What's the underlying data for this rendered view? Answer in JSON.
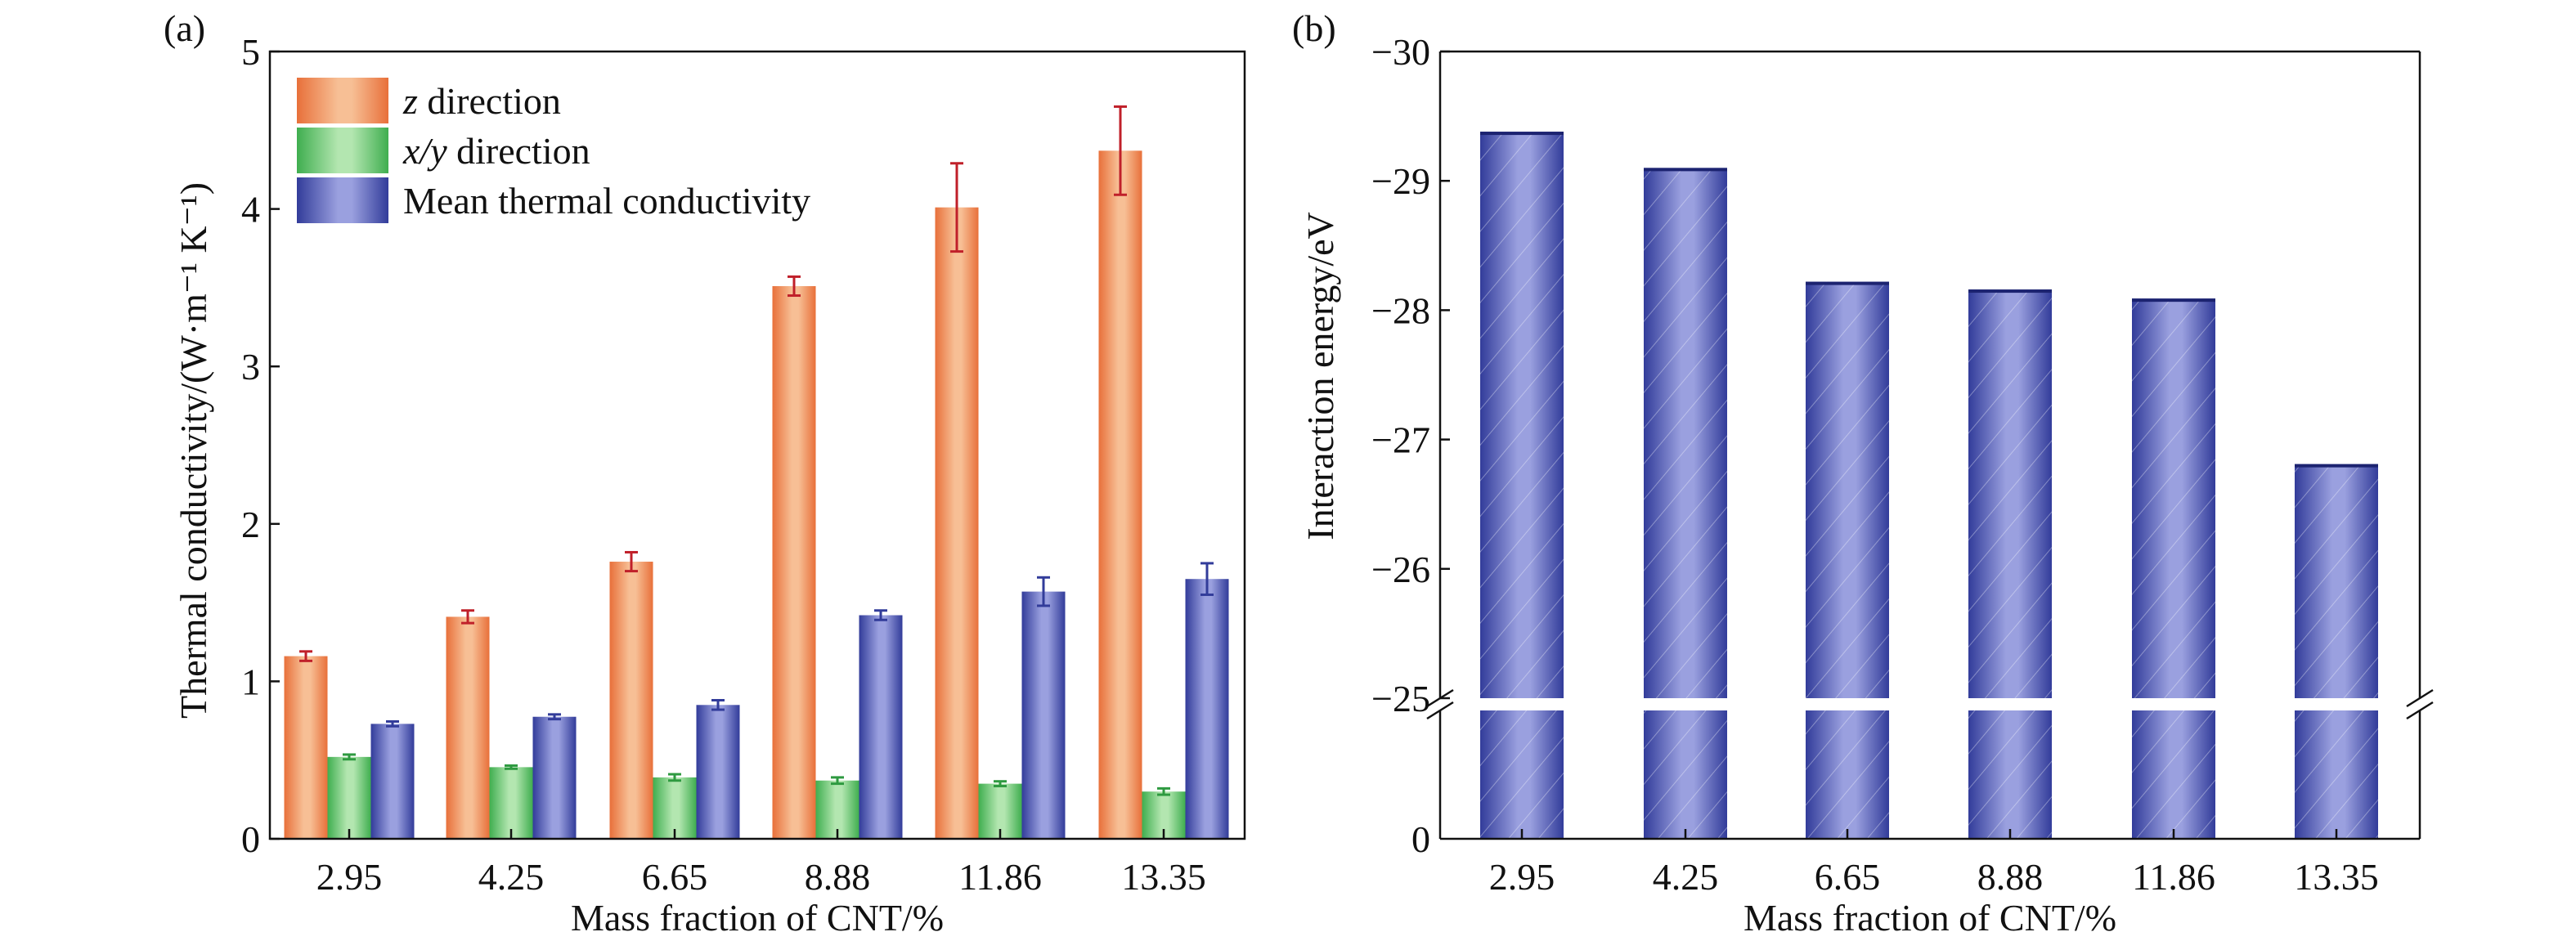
{
  "chart_data": [
    {
      "panel_label": "(a)",
      "type": "bar",
      "xlabel": "Mass fraction of CNT/%",
      "ylabel": "Thermal conductivity/(W·m⁻¹ K⁻¹)",
      "categories": [
        "2.95",
        "4.25",
        "6.65",
        "8.88",
        "11.86",
        "13.35"
      ],
      "ylim": [
        0,
        5
      ],
      "yticks": [
        "0",
        "1",
        "2",
        "3",
        "4",
        "5"
      ],
      "legend_position": "top-left",
      "grid": false,
      "series": [
        {
          "name": "z direction",
          "name_italic": "z",
          "name_rest": " direction",
          "color": "#e8703a",
          "highlight": "#f7bf95",
          "error_color": "#c0202a",
          "values": [
            1.16,
            1.41,
            1.76,
            3.51,
            4.01,
            4.37
          ],
          "errors": [
            0.03,
            0.04,
            0.06,
            0.06,
            0.28,
            0.28
          ]
        },
        {
          "name": "x/y direction",
          "name_italic": "x/y",
          "name_rest": " direction",
          "color": "#3fae4f",
          "highlight": "#b3e6b0",
          "error_color": "#2e9a40",
          "values": [
            0.52,
            0.455,
            0.39,
            0.37,
            0.35,
            0.3
          ],
          "errors": [
            0.015,
            0.01,
            0.02,
            0.02,
            0.015,
            0.02
          ]
        },
        {
          "name": "Mean thermal conductivity",
          "name_italic": "",
          "name_rest": "Mean thermal conductivity",
          "color": "#323c9a",
          "highlight": "#9aa0df",
          "error_color": "#323c9a",
          "values": [
            0.73,
            0.775,
            0.85,
            1.42,
            1.57,
            1.65
          ],
          "errors": [
            0.015,
            0.015,
            0.03,
            0.03,
            0.09,
            0.1
          ]
        }
      ]
    },
    {
      "panel_label": "(b)",
      "type": "bar",
      "xlabel": "Mass fraction of CNT/%",
      "ylabel": "Interaction energy/eV",
      "categories": [
        "2.95",
        "4.25",
        "6.65",
        "8.88",
        "11.86",
        "13.35"
      ],
      "values": [
        -29.38,
        -29.1,
        -28.22,
        -28.16,
        -28.09,
        -26.81
      ],
      "ylim": [
        0,
        -30
      ],
      "axis_break": [
        0,
        -25
      ],
      "yticks": [
        "0",
        "−25",
        "−26",
        "−27",
        "−28",
        "−29",
        "−30"
      ],
      "color": "#323c9a",
      "highlight": "#9aa0df",
      "grid": false
    }
  ]
}
